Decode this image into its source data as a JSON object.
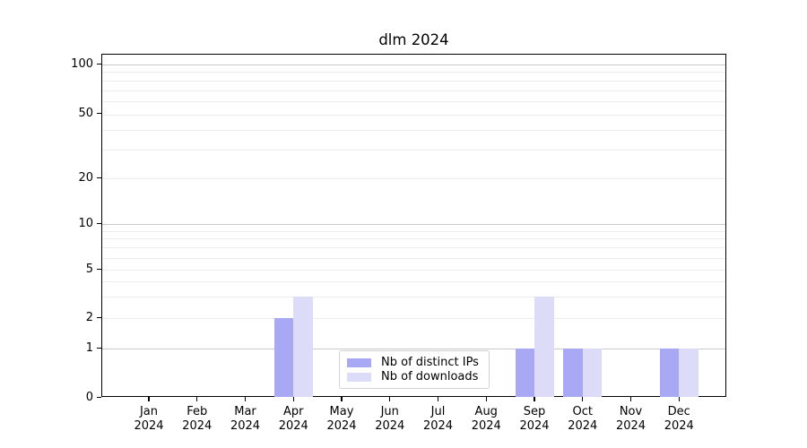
{
  "chart_data": {
    "type": "bar",
    "title": "dlm 2024",
    "categories": [
      "Jan",
      "Feb",
      "Mar",
      "Apr",
      "May",
      "Jun",
      "Jul",
      "Aug",
      "Sep",
      "Oct",
      "Nov",
      "Dec"
    ],
    "category_year": "2024",
    "series": [
      {
        "name": "Nb of distinct IPs",
        "color": "#a8a8f5",
        "values": [
          0,
          0,
          0,
          2,
          0,
          0,
          0,
          0,
          1,
          1,
          0,
          1
        ]
      },
      {
        "name": "Nb of downloads",
        "color": "#dcdcf9",
        "values": [
          0,
          0,
          0,
          3,
          0,
          0,
          0,
          0,
          3,
          1,
          0,
          1
        ]
      }
    ],
    "xlabel": "",
    "ylabel": "",
    "yscale": "symlog",
    "yticks": [
      100,
      50,
      20,
      10,
      5,
      2,
      1,
      0
    ],
    "ylim": [
      0,
      115
    ],
    "grid": "on",
    "legend_position": "lower center",
    "grid_major_color": "#c9c9c9",
    "grid_minor_color": "#ededed"
  }
}
